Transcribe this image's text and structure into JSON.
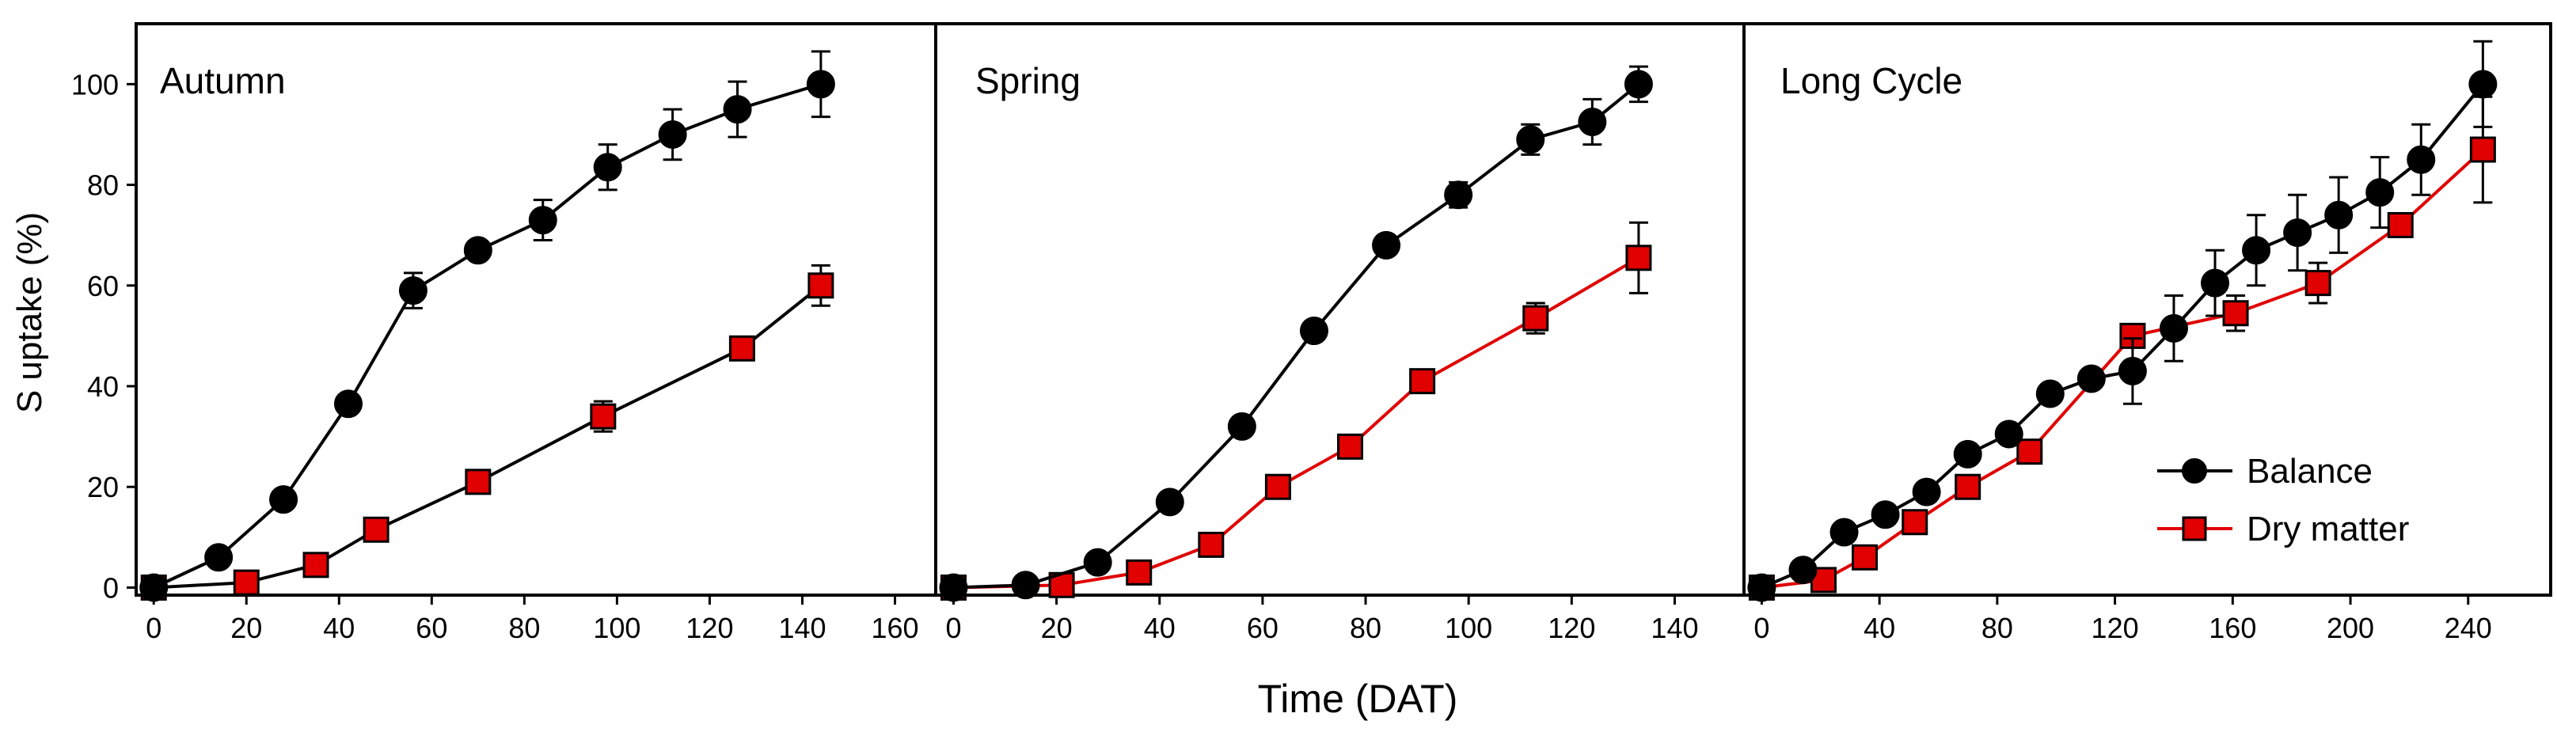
{
  "figure": {
    "ylabel": "S uptake (%)",
    "xlabel": "Time (DAT)"
  },
  "legend": {
    "balance_label": "Balance",
    "dry_matter_label": "Dry matter"
  },
  "colors": {
    "balance": "#000000",
    "dry_matter": "#e00000",
    "dry_matter_line": "#000000",
    "frame": "#000000"
  },
  "chart_data": [
    {
      "type": "line",
      "title": "Autumn",
      "xlabel": "Time (DAT)",
      "ylabel": "S uptake (%)",
      "xlim": [
        0,
        165
      ],
      "ylim": [
        -1.5,
        112
      ],
      "xticks": [
        0,
        20,
        40,
        60,
        80,
        100,
        120,
        140,
        160
      ],
      "yticks": [
        0,
        20,
        40,
        60,
        80,
        100
      ],
      "dry_matter_line_color": "#000000",
      "series": [
        {
          "name": "Balance",
          "marker": "circle",
          "x": [
            0,
            14,
            28,
            42,
            56,
            70,
            84,
            98,
            112,
            126,
            144
          ],
          "y": [
            0,
            6,
            17.5,
            36.5,
            59,
            67,
            73,
            83.5,
            90,
            95,
            100
          ],
          "err": [
            0,
            0,
            0,
            0,
            3.5,
            0,
            4,
            4.5,
            5,
            5.5,
            6.5
          ]
        },
        {
          "name": "Dry matter",
          "marker": "square",
          "x": [
            0,
            20,
            35,
            48,
            70,
            97,
            127,
            144
          ],
          "y": [
            0,
            1,
            4.5,
            11.5,
            21,
            34,
            47.5,
            60
          ],
          "err": [
            0,
            0,
            0,
            0,
            0,
            3,
            0,
            4
          ]
        }
      ]
    },
    {
      "type": "line",
      "title": "Spring",
      "xlabel": "Time (DAT)",
      "ylabel": "S uptake (%)",
      "xlim": [
        0,
        150
      ],
      "ylim": [
        -1.5,
        112
      ],
      "xticks": [
        0,
        20,
        40,
        60,
        80,
        100,
        120,
        140
      ],
      "yticks": [
        0,
        20,
        40,
        60,
        80,
        100
      ],
      "dry_matter_line_color": "#e00000",
      "series": [
        {
          "name": "Balance",
          "marker": "circle",
          "x": [
            0,
            14,
            28,
            42,
            56,
            70,
            84,
            98,
            112,
            124,
            133
          ],
          "y": [
            0,
            0.5,
            5,
            17,
            32,
            51,
            68,
            78,
            89,
            92.5,
            100
          ],
          "err": [
            0,
            0,
            0,
            0,
            0,
            0,
            0,
            2.5,
            3,
            4.5,
            3.5
          ]
        },
        {
          "name": "Dry matter",
          "marker": "square",
          "x": [
            0,
            21,
            36,
            50,
            63,
            77,
            91,
            113,
            133
          ],
          "y": [
            0,
            0.5,
            3,
            8.5,
            20,
            28,
            41,
            53.5,
            65.5
          ],
          "err": [
            0,
            0,
            0,
            0,
            0,
            0,
            0,
            3,
            7
          ]
        }
      ]
    },
    {
      "type": "line",
      "title": "Long Cycle",
      "xlabel": "Time (DAT)",
      "ylabel": "S uptake (%)",
      "xlim": [
        0,
        262
      ],
      "ylim": [
        -1.5,
        112
      ],
      "xticks": [
        0,
        40,
        80,
        120,
        160,
        200,
        240
      ],
      "yticks": [
        0,
        20,
        40,
        60,
        80,
        100
      ],
      "dry_matter_line_color": "#e00000",
      "legend_position": "bottom-right",
      "series": [
        {
          "name": "Balance",
          "marker": "circle",
          "x": [
            0,
            14,
            28,
            42,
            56,
            70,
            84,
            98,
            112,
            126,
            140,
            154,
            168,
            182,
            196,
            210,
            224,
            245
          ],
          "y": [
            0,
            3.5,
            11,
            14.5,
            19,
            26.5,
            30.5,
            38.5,
            41.5,
            43,
            51.5,
            60.5,
            67,
            70.5,
            74,
            78.5,
            85,
            100
          ],
          "err": [
            0,
            0,
            0,
            0,
            0,
            0,
            0,
            0,
            0,
            6.5,
            6.5,
            6.5,
            7,
            7.5,
            7.5,
            7,
            7,
            8.5
          ]
        },
        {
          "name": "Dry matter",
          "marker": "square",
          "x": [
            0,
            21,
            35,
            52,
            70,
            91,
            126,
            161,
            189,
            217,
            245
          ],
          "y": [
            0,
            1.5,
            6,
            13,
            20,
            27,
            50,
            54.5,
            60.5,
            72,
            87
          ],
          "err": [
            0,
            0,
            0,
            0,
            0,
            0,
            0,
            3.5,
            4,
            0,
            10.5
          ]
        }
      ]
    }
  ]
}
